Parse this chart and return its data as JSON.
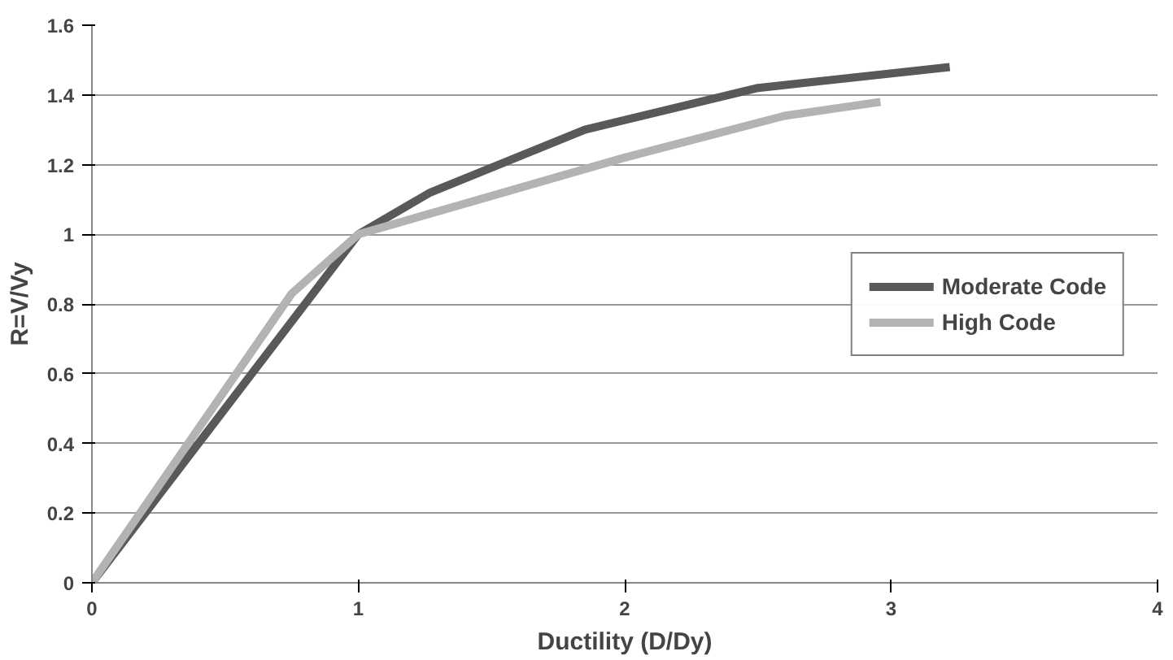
{
  "chart_data": {
    "type": "line",
    "xlabel": "Ductility (D/Dy)",
    "ylabel": "R=V/Vy",
    "xlim": [
      0,
      4
    ],
    "xticks": [
      0,
      1,
      2,
      3,
      4
    ],
    "ylim": [
      0,
      1.6
    ],
    "yticks": [
      0,
      0.2,
      0.4,
      0.6,
      0.8,
      1,
      1.2,
      1.4,
      1.6
    ],
    "grid": "y",
    "legend": "right",
    "marker": "none",
    "line_style": "solid",
    "series": [
      {
        "name": "Moderate Code",
        "color": "#595959",
        "x": [
          0,
          1,
          1.27,
          1.85,
          2.5,
          3.22
        ],
        "values": [
          0,
          1,
          1.12,
          1.3,
          1.42,
          1.48
        ]
      },
      {
        "name": "High Code",
        "color": "#b3b3b3",
        "x": [
          0,
          0.75,
          1,
          2,
          2.6,
          2.96
        ],
        "values": [
          0,
          0.83,
          1,
          1.22,
          1.34,
          1.38
        ]
      }
    ]
  }
}
